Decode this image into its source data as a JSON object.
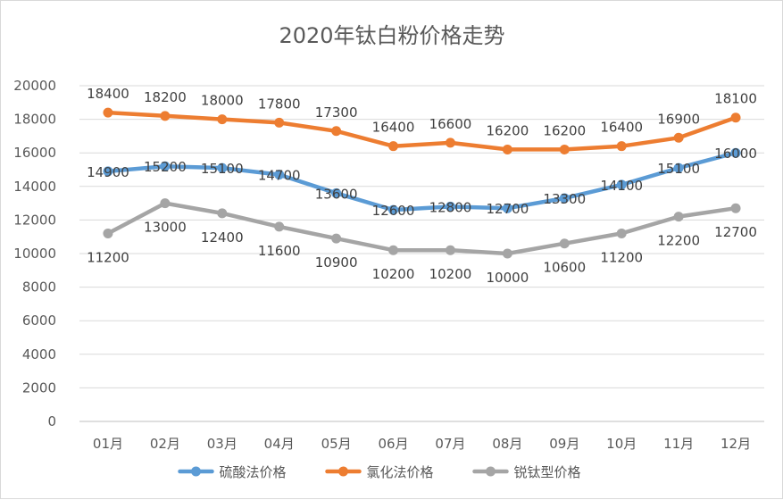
{
  "chart_data": {
    "type": "line",
    "title": "2020年钛白粉价格走势",
    "categories": [
      "01月",
      "02月",
      "03月",
      "04月",
      "05月",
      "06月",
      "07月",
      "08月",
      "09月",
      "10月",
      "11月",
      "12月"
    ],
    "ylim": [
      0,
      20000
    ],
    "yticks": [
      0,
      2000,
      4000,
      6000,
      8000,
      10000,
      12000,
      14000,
      16000,
      18000,
      20000
    ],
    "grid": true,
    "legend_position": "bottom",
    "series": [
      {
        "name": "硫酸法价格",
        "color": "#5b9bd5",
        "label_pos": "center",
        "values": [
          14900,
          15200,
          15100,
          14700,
          13600,
          12600,
          12800,
          12700,
          13300,
          14100,
          15100,
          16000
        ]
      },
      {
        "name": "氯化法价格",
        "color": "#ed7d31",
        "label_pos": "above",
        "values": [
          18400,
          18200,
          18000,
          17800,
          17300,
          16400,
          16600,
          16200,
          16200,
          16400,
          16900,
          18100
        ]
      },
      {
        "name": "锐钛型价格",
        "color": "#a5a5a5",
        "label_pos": "below",
        "values": [
          11200,
          13000,
          12400,
          11600,
          10900,
          10200,
          10200,
          10000,
          10600,
          11200,
          12200,
          12700
        ]
      }
    ]
  }
}
